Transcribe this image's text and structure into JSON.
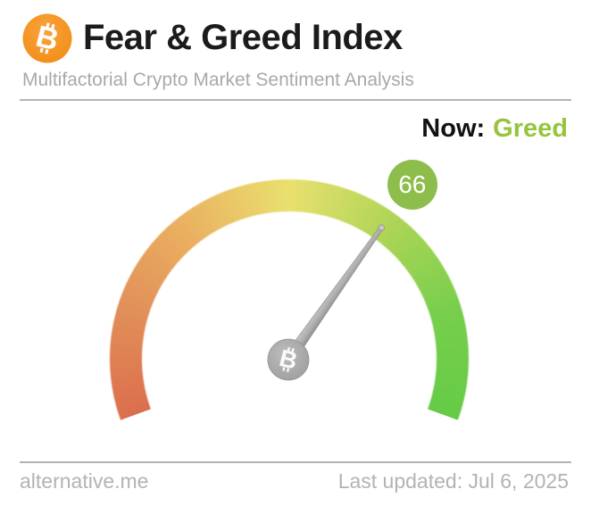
{
  "header": {
    "title": "Fear & Greed Index",
    "subtitle": "Multifactorial Crypto Market Sentiment Analysis",
    "logo": {
      "icon": "bitcoin-icon",
      "glyph": "B",
      "circle_color": "#f7941d"
    }
  },
  "status": {
    "label": "Now:",
    "value": "Greed",
    "value_color": "#96c43e"
  },
  "gauge": {
    "value": 66,
    "min": 0,
    "max": 100,
    "start_angle_deg": 200,
    "sweep_deg": 220,
    "badge_color": "#8dbe4b",
    "badge_orbit_radius": 239,
    "gradient": [
      {
        "deg": 0,
        "color": "#db6e4d"
      },
      {
        "deg": 40,
        "color": "#e2925a"
      },
      {
        "deg": 70,
        "color": "#eaaf60"
      },
      {
        "deg": 110,
        "color": "#e9e06e"
      },
      {
        "deg": 150,
        "color": "#a9d455"
      },
      {
        "deg": 185,
        "color": "#76ce4c"
      },
      {
        "deg": 220,
        "color": "#65cb46"
      }
    ],
    "pivot": {
      "icon": "bitcoin-icon",
      "glyph": "B"
    }
  },
  "footer": {
    "site": "alternative.me",
    "last_updated": "Last updated: Jul 6, 2025"
  },
  "chart_data": {
    "type": "gauge",
    "title": "Fear & Greed Index",
    "subtitle": "Multifactorial Crypto Market Sentiment Analysis",
    "value": 66,
    "min": 0,
    "max": 100,
    "label": "Greed",
    "arc_sweep_deg": 220,
    "scale_colors_low_to_high": [
      "#db6e4d",
      "#eaaf60",
      "#e9e06e",
      "#a9d455",
      "#65cb46"
    ],
    "annotations": [
      "Now: Greed",
      "Last updated: Jul 6, 2025"
    ]
  }
}
